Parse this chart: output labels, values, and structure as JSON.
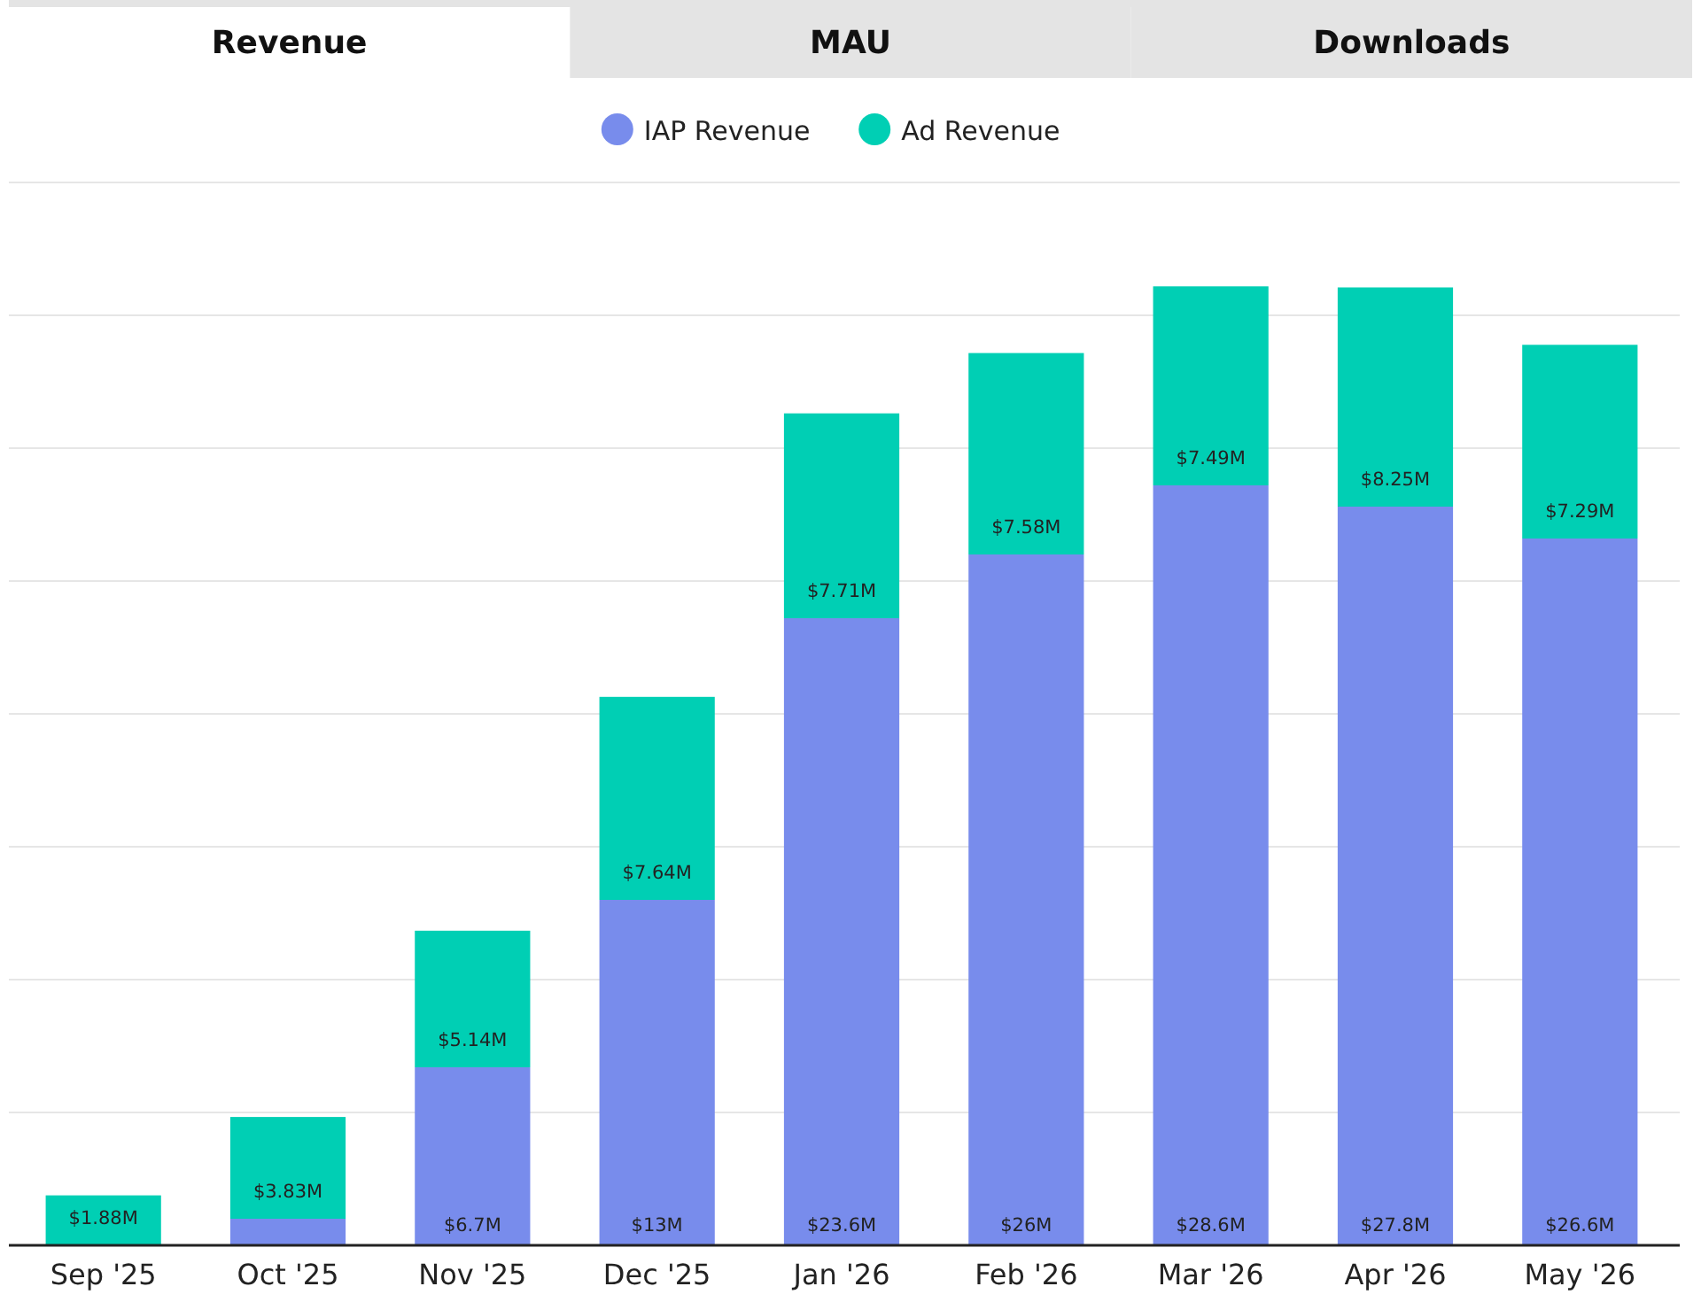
{
  "chart_data": {
    "type": "bar",
    "stacked": true,
    "categories": [
      "Sep '25",
      "Oct '25",
      "Nov '25",
      "Dec '25",
      "Jan '26",
      "Feb '26",
      "Mar '26",
      "Apr '26",
      "May '26"
    ],
    "series": [
      {
        "name": "IAP Revenue",
        "color": "#788cec",
        "values": [
          0,
          1.0,
          6.7,
          13,
          23.6,
          26,
          28.6,
          27.8,
          26.6
        ],
        "value_labels": [
          null,
          null,
          "$6.7M",
          "$13M",
          "$23.6M",
          "$26M",
          "$28.6M",
          "$27.8M",
          "$26.6M"
        ]
      },
      {
        "name": "Ad Revenue",
        "color": "#00cfb4",
        "values": [
          1.88,
          3.83,
          5.14,
          7.64,
          7.71,
          7.58,
          7.49,
          8.25,
          7.29
        ],
        "value_labels": [
          "$1.88M",
          "$3.83M",
          "$5.14M",
          "$7.64M",
          "$7.71M",
          "$7.58M",
          "$7.49M",
          "$8.25M",
          "$7.29M"
        ]
      }
    ],
    "ylim": [
      0,
      40
    ],
    "yticks": [
      {
        "value": 0,
        "label": null
      },
      {
        "value": 5,
        "label": null
      },
      {
        "value": 10,
        "label": null
      },
      {
        "value": 15,
        "label": null
      },
      {
        "value": 20,
        "label": null
      },
      {
        "value": 25,
        "label": null
      },
      {
        "value": 30,
        "label": null
      },
      {
        "value": 35,
        "label": null
      },
      {
        "value": 40,
        "label": null
      }
    ],
    "tick_labels": "x",
    "grid": "y",
    "legend": "top",
    "annotations": [
      "Revenue",
      "MAU",
      "Downloads"
    ]
  }
}
